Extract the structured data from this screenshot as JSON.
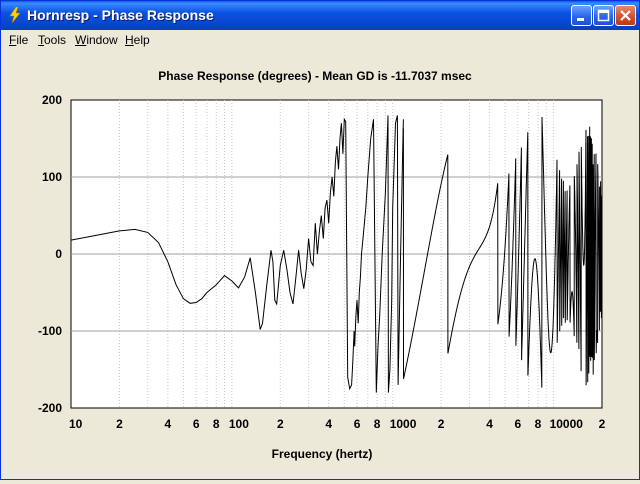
{
  "window": {
    "title": "Hornresp - Phase Response",
    "icon": "lightning-bolt-icon"
  },
  "titlebar_buttons": [
    "minimize-button",
    "maximize-button",
    "close-button"
  ],
  "menu": [
    "File",
    "Tools",
    "Window",
    "Help"
  ],
  "chart_data": {
    "type": "line",
    "title": "Phase Response (degrees) - Mean GD is -11.7037 msec",
    "xlabel": "Frequency (hertz)",
    "ylabel": "",
    "x_scale": "log",
    "xlim": [
      10,
      20000
    ],
    "ylim": [
      -200,
      200
    ],
    "y_ticks": [
      200,
      100,
      0,
      -100,
      -200
    ],
    "x_tick_labels": [
      {
        "value": 10,
        "label": "10"
      },
      {
        "value": 20,
        "label": "2"
      },
      {
        "value": 40,
        "label": "4"
      },
      {
        "value": 60,
        "label": "6"
      },
      {
        "value": 80,
        "label": "8"
      },
      {
        "value": 100,
        "label": "100"
      },
      {
        "value": 200,
        "label": "2"
      },
      {
        "value": 400,
        "label": "4"
      },
      {
        "value": 600,
        "label": "6"
      },
      {
        "value": 800,
        "label": "8"
      },
      {
        "value": 1000,
        "label": "1000"
      },
      {
        "value": 2000,
        "label": "2"
      },
      {
        "value": 4000,
        "label": "4"
      },
      {
        "value": 6000,
        "label": "6"
      },
      {
        "value": 8000,
        "label": "8"
      },
      {
        "value": 10000,
        "label": "10000"
      },
      {
        "value": 20000,
        "label": "2"
      }
    ],
    "grid": true,
    "line_color": "#000000",
    "series": [
      {
        "x": [
          10,
          15,
          20,
          25,
          30,
          35,
          40,
          45,
          50,
          55,
          60,
          65,
          70,
          80,
          90,
          100,
          110,
          120,
          130,
          140,
          150,
          155,
          165,
          175,
          180,
          185,
          190,
          200,
          210,
          220,
          230,
          240,
          250,
          260,
          270,
          280,
          290,
          300,
          310,
          320,
          330,
          340,
          350,
          360,
          370,
          380,
          390,
          400,
          410,
          420,
          430,
          440,
          450,
          460,
          470,
          480,
          490,
          500,
          510,
          525,
          540,
          555,
          565,
          575,
          580,
          590,
          600,
          610,
          620,
          630,
          640,
          660,
          680,
          700,
          730,
          760,
          790,
          810,
          830,
          860,
          900,
          935,
          940,
          960,
          985,
          1000,
          1040,
          1070,
          1080,
          1120,
          1160,
          1165
        ],
        "y": [
          18,
          25,
          30,
          32,
          28,
          15,
          -10,
          -40,
          -58,
          -64,
          -63,
          -58,
          -50,
          -40,
          -28,
          -35,
          -44,
          -30,
          -5,
          -50,
          -98,
          -90,
          -40,
          5,
          -10,
          -60,
          -65,
          -15,
          5,
          -20,
          -50,
          -65,
          -30,
          5,
          -25,
          -45,
          -20,
          20,
          -10,
          -15,
          40,
          0,
          30,
          50,
          20,
          60,
          70,
          40,
          80,
          100,
          75,
          120,
          140,
          110,
          150,
          170,
          130,
          175,
          172,
          -160,
          -175,
          -170,
          -140,
          -100,
          -120,
          -80,
          -60,
          -90,
          -50,
          -30,
          0,
          30,
          60,
          100,
          150,
          175,
          -180,
          -120,
          -80,
          0,
          80,
          180,
          -180,
          -150,
          -60,
          60,
          170,
          180,
          -170,
          0,
          160,
          175
        ]
      }
    ],
    "dense_oscillation": {
      "x_start": 1165,
      "x_end": 20000,
      "y_min": -180,
      "y_max": 180,
      "note_cycles_per_decade_increasing": true
    }
  }
}
